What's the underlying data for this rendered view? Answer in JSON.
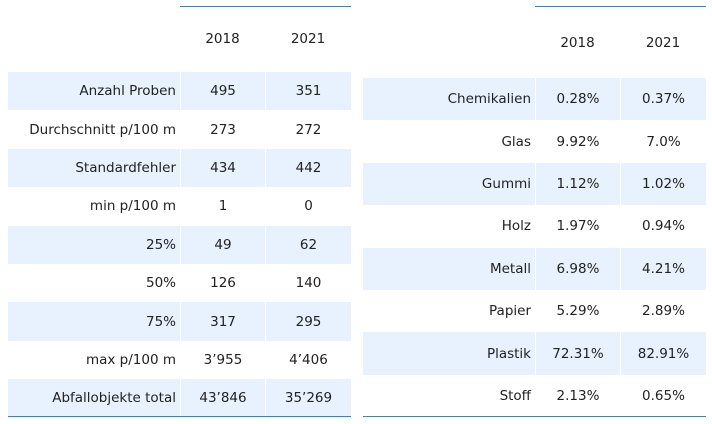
{
  "summary_table": {
    "headers": [
      "2018",
      "2021"
    ],
    "rows": [
      {
        "label": "Anzahl Proben",
        "v2018": "495",
        "v2021": "351"
      },
      {
        "label": "Durchschnitt p/100 m",
        "v2018": "273",
        "v2021": "272"
      },
      {
        "label": "Standardfehler",
        "v2018": "434",
        "v2021": "442"
      },
      {
        "label": "min p/100 m",
        "v2018": "1",
        "v2021": "0"
      },
      {
        "label": "25%",
        "v2018": "49",
        "v2021": "62"
      },
      {
        "label": "50%",
        "v2018": "126",
        "v2021": "140"
      },
      {
        "label": "75%",
        "v2018": "317",
        "v2021": "295"
      },
      {
        "label": "max p/100 m",
        "v2018": "3’955",
        "v2021": "4’406"
      },
      {
        "label": "Abfallobjekte total",
        "v2018": "43’846",
        "v2021": "35’269"
      }
    ]
  },
  "material_table": {
    "headers": [
      "2018",
      "2021"
    ],
    "rows": [
      {
        "label": "Chemikalien",
        "v2018": "0.28%",
        "v2021": "0.37%"
      },
      {
        "label": "Glas",
        "v2018": "9.92%",
        "v2021": "7.0%"
      },
      {
        "label": "Gummi",
        "v2018": "1.12%",
        "v2021": "1.02%"
      },
      {
        "label": "Holz",
        "v2018": "1.97%",
        "v2021": "0.94%"
      },
      {
        "label": "Metall",
        "v2018": "6.98%",
        "v2021": "4.21%"
      },
      {
        "label": "Papier",
        "v2018": "5.29%",
        "v2021": "2.89%"
      },
      {
        "label": "Plastik",
        "v2018": "72.31%",
        "v2021": "82.91%"
      },
      {
        "label": "Stoff",
        "v2018": "2.13%",
        "v2021": "0.65%"
      }
    ]
  },
  "colors": {
    "stripe": "#e8f2fe",
    "rule": "#2b8cc4",
    "text": "#222222"
  }
}
